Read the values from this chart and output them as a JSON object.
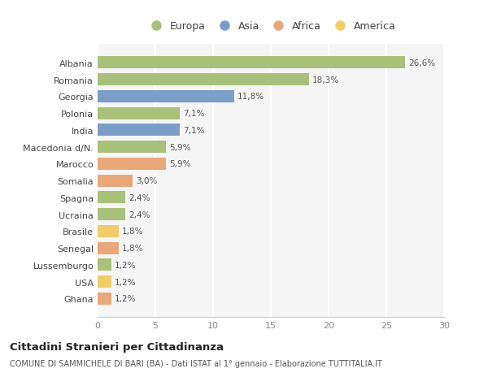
{
  "countries": [
    "Albania",
    "Romania",
    "Georgia",
    "Polonia",
    "India",
    "Macedonia d/N.",
    "Marocco",
    "Somalia",
    "Spagna",
    "Ucraina",
    "Brasile",
    "Senegal",
    "Lussemburgo",
    "USA",
    "Ghana"
  ],
  "values": [
    26.6,
    18.3,
    11.8,
    7.1,
    7.1,
    5.9,
    5.9,
    3.0,
    2.4,
    2.4,
    1.8,
    1.8,
    1.2,
    1.2,
    1.2
  ],
  "labels": [
    "26,6%",
    "18,3%",
    "11,8%",
    "7,1%",
    "7,1%",
    "5,9%",
    "5,9%",
    "3,0%",
    "2,4%",
    "2,4%",
    "1,8%",
    "1,8%",
    "1,2%",
    "1,2%",
    "1,2%"
  ],
  "continents": [
    "Europa",
    "Europa",
    "Asia",
    "Europa",
    "Asia",
    "Europa",
    "Africa",
    "Africa",
    "Europa",
    "Europa",
    "America",
    "Africa",
    "Europa",
    "America",
    "Africa"
  ],
  "colors": {
    "Europa": "#a8c07a",
    "Asia": "#7a9ec8",
    "Africa": "#e8a87a",
    "America": "#f0cc6a"
  },
  "xlim": [
    0,
    30
  ],
  "xticks": [
    0,
    5,
    10,
    15,
    20,
    25,
    30
  ],
  "title": "Cittadini Stranieri per Cittadinanza",
  "subtitle": "COMUNE DI SAMMICHELE DI BARI (BA) - Dati ISTAT al 1° gennaio - Elaborazione TUTTITALIA.IT",
  "background_color": "#ffffff",
  "plot_bg_color": "#f5f5f5",
  "grid_color": "#ffffff",
  "bar_height": 0.72,
  "legend_entries": [
    "Europa",
    "Asia",
    "Africa",
    "America"
  ]
}
